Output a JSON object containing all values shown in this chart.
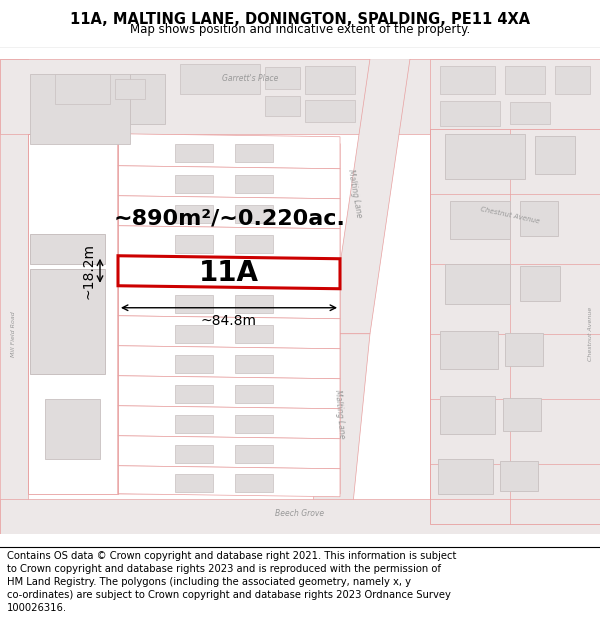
{
  "title_line1": "11A, MALTING LANE, DONINGTON, SPALDING, PE11 4XA",
  "title_line2": "Map shows position and indicative extent of the property.",
  "footer_lines": [
    "Contains OS data © Crown copyright and database right 2021. This information is subject",
    "to Crown copyright and database rights 2023 and is reproduced with the permission of",
    "HM Land Registry. The polygons (including the associated geometry, namely x, y",
    "co-ordinates) are subject to Crown copyright and database rights 2023 Ordnance Survey",
    "100026316."
  ],
  "area_label": "~890m²/~0.220ac.",
  "width_label": "~84.8m",
  "height_label": "~18.2m",
  "plot_label": "11A",
  "bg_color": "#f7f4f4",
  "road_fill": "#f0ecec",
  "parcel_edge": "#e8a0a0",
  "building_fill": "#e0dcdc",
  "building_edge": "#c8c0c0",
  "highlight_color": "#cc0000",
  "title_fontsize": 10.5,
  "subtitle_fontsize": 8.5,
  "footer_fontsize": 7.2,
  "area_fontsize": 16,
  "label_fontsize": 20,
  "dim_fontsize": 10
}
